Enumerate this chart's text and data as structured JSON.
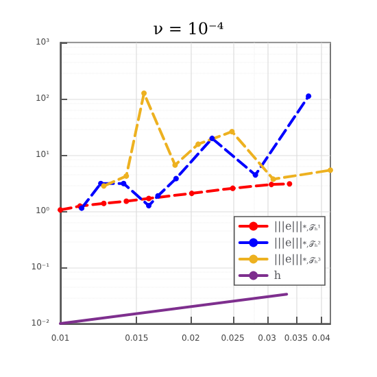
{
  "chart_data": {
    "type": "line",
    "title": "ν = 10⁻⁴",
    "log": "xy",
    "grid": true,
    "legend": "right",
    "xlim": [
      0.01,
      0.042
    ],
    "ylim": [
      0.01,
      1000
    ],
    "xticks": [
      0.01,
      0.015,
      0.02,
      0.025,
      0.03,
      0.035,
      0.04
    ],
    "yticks": [
      {
        "value": 0.01,
        "label": "10⁻²"
      },
      {
        "value": 0.1,
        "label": "10⁻¹"
      },
      {
        "value": 1,
        "label": "10⁰"
      },
      {
        "value": 10,
        "label": "10¹"
      },
      {
        "value": 100,
        "label": "10²"
      },
      {
        "value": 1000,
        "label": "10³"
      }
    ],
    "series": [
      {
        "name": "|||e|||$_{*,𝒯ₕ¹}$",
        "color": "#ff0000",
        "line_style": "dashed",
        "marker": "circle",
        "x": [
          0.01,
          0.0111,
          0.0126,
          0.0142,
          0.016,
          0.0201,
          0.025,
          0.0307,
          0.0338
        ],
        "values": [
          1.05,
          1.23,
          1.37,
          1.5,
          1.68,
          2.07,
          2.55,
          2.98,
          3.06
        ]
      },
      {
        "name": "|||e|||$_{*,𝒯ₕ²}$",
        "color": "#0000ff",
        "line_style": "dashed",
        "marker": "circle",
        "x": [
          0.0112,
          0.0124,
          0.014,
          0.016,
          0.0168,
          0.0185,
          0.0224,
          0.0282,
          0.0374
        ],
        "values": [
          1.13,
          3.1,
          3.1,
          1.25,
          1.87,
          3.8,
          19.7,
          4.4,
          111
        ]
      },
      {
        "name": "|||e|||$_{*,𝒯ₕ³}$",
        "color": "#edb120",
        "line_style": "dashed",
        "marker": "circle",
        "x": [
          0.0126,
          0.0142,
          0.0156,
          0.0184,
          0.0208,
          0.0249,
          0.031,
          0.042
        ],
        "values": [
          2.8,
          4.2,
          125,
          6.6,
          15.5,
          26,
          3.7,
          5.35
        ]
      },
      {
        "name": "h",
        "color": "#7e2f8e",
        "line_style": "solid",
        "marker": "none",
        "x": [
          0.01,
          0.0333
        ],
        "values": [
          0.01,
          0.0333
        ]
      }
    ]
  }
}
